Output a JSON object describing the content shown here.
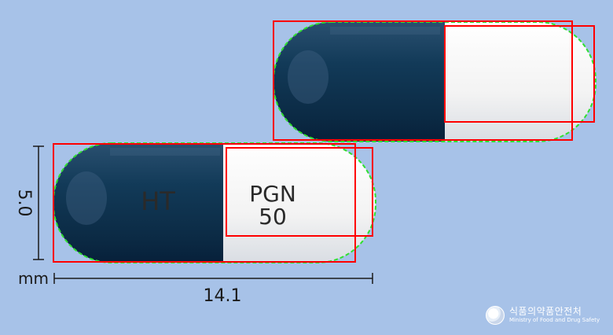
{
  "capsule_front": {
    "imprint_left": "HT",
    "imprint_right_line1": "PGN",
    "imprint_right_line2": "50"
  },
  "dimensions": {
    "height_label": "5.0",
    "unit_label": "mm",
    "length_label": "14.1"
  },
  "logo": {
    "korean_name": "식품의약품안전처",
    "english_name": "Ministry of Food and Drug Safety"
  },
  "colors": {
    "background": "#a7c2e8",
    "capsule_dark": "#0f3350",
    "capsule_light": "#f2f2f2",
    "box_outline": "#ff0000",
    "contour": "#2fe02f"
  }
}
